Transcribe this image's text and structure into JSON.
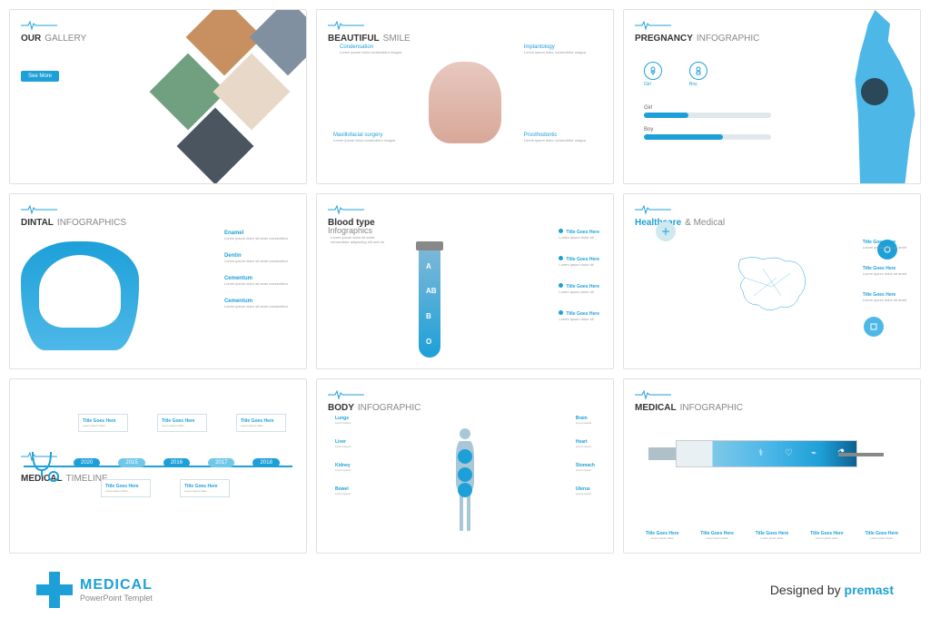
{
  "accent_color": "#1da0d8",
  "accent_light": "#4db8e8",
  "slides": {
    "s1": {
      "title_bold": "OUR",
      "title_light": "GALLERY",
      "button": "See More"
    },
    "s2": {
      "title_bold": "BEAUTIFUL",
      "title_light": "SMILE",
      "l1": "Condensation",
      "l2": "Implantology",
      "l3": "Maxillofacial surgery",
      "l4": "Prosthodontic",
      "sub": "Lorem ipsum dolor consectetur magna"
    },
    "s3": {
      "title_bold": "PREGNANCY",
      "title_light": "INFOGRAPHIC",
      "icon1": "Girl",
      "icon2": "Boy",
      "bar1_label": "Girl",
      "bar1_pct": 35,
      "bar2_label": "Boy",
      "bar2_pct": 62
    },
    "s4": {
      "title_bold": "DINTAL",
      "title_light": "INFOGRAPHICS",
      "items": [
        {
          "t": "Enamel",
          "d": "Lorem ipsum dolor sit amet consectetur"
        },
        {
          "t": "Dentin",
          "d": "Lorem ipsum dolor sit amet consectetur"
        },
        {
          "t": "Cementum",
          "d": "Lorem ipsum dolor sit amet consectetur"
        },
        {
          "t": "Cementum",
          "d": "Lorem ipsum dolor sit amet consectetur"
        }
      ]
    },
    "s5": {
      "title_bold": "Blood type",
      "title_light": "Infographics",
      "side": "Lorem ipsum dolor sit amet consectetur adipiscing elit sed do",
      "letters": [
        "A",
        "AB",
        "B",
        "O"
      ],
      "items": [
        {
          "t": "Title Goes Here",
          "d": "Lorem ipsum dolor sit"
        },
        {
          "t": "Title Goes Here",
          "d": "Lorem ipsum dolor sit"
        },
        {
          "t": "Title Goes Here",
          "d": "Lorem ipsum dolor sit"
        },
        {
          "t": "Title Goes Here",
          "d": "Lorem ipsum dolor sit"
        }
      ]
    },
    "s6": {
      "title_bold": "Healthcare",
      "title_light": "& Medical",
      "items": [
        {
          "t": "Title Goes Here",
          "d": "Lorem ipsum dolor sit amet"
        },
        {
          "t": "Title Goes Here",
          "d": "Lorem ipsum dolor sit amet"
        },
        {
          "t": "Title Goes Here",
          "d": "Lorem ipsum dolor sit amet"
        }
      ]
    },
    "s7": {
      "title_bold": "MEDICAL",
      "title_light": "TIMELINE",
      "years": [
        "2020",
        "2015",
        "2016",
        "2017",
        "2018"
      ],
      "boxes": [
        {
          "t": "Title Goes Here",
          "d": "Lorem ipsum dolor"
        },
        {
          "t": "Title Goes Here",
          "d": "Lorem ipsum dolor"
        },
        {
          "t": "Title Goes Here",
          "d": "Lorem ipsum dolor"
        },
        {
          "t": "Title Goes Here",
          "d": "Lorem ipsum dolor"
        },
        {
          "t": "Title Goes Here",
          "d": "Lorem ipsum dolor"
        }
      ]
    },
    "s8": {
      "title_bold": "BODY",
      "title_light": "INFOGRAPHIC",
      "left": [
        {
          "t": "Lungs",
          "d": "Lorem ipsum"
        },
        {
          "t": "Liver",
          "d": "Lorem ipsum"
        },
        {
          "t": "Kidney",
          "d": "Lorem ipsum"
        },
        {
          "t": "Bowel",
          "d": "Lorem ipsum"
        }
      ],
      "right": [
        {
          "t": "Brain",
          "d": "Lorem ipsum"
        },
        {
          "t": "Heart",
          "d": "Lorem ipsum"
        },
        {
          "t": "Stomach",
          "d": "Lorem ipsum"
        },
        {
          "t": "Uterus",
          "d": "Lorem ipsum"
        }
      ]
    },
    "s9": {
      "title_bold": "MEDICAL",
      "title_light": "INFOGRAPHIC",
      "items": [
        {
          "t": "Title Goes Here",
          "d": "Lorem ipsum dolor"
        },
        {
          "t": "Title Goes Here",
          "d": "Lorem ipsum dolor"
        },
        {
          "t": "Title Goes Here",
          "d": "Lorem ipsum dolor"
        },
        {
          "t": "Title Goes Here",
          "d": "Lorem ipsum dolor"
        },
        {
          "t": "Title Goes Here",
          "d": "Lorem ipsum dolor"
        }
      ]
    }
  },
  "footer": {
    "logo_main": "MEDICAL",
    "logo_sub": "PowerPoint Templet",
    "credit_pre": "Designed by ",
    "credit_brand": "premast"
  }
}
